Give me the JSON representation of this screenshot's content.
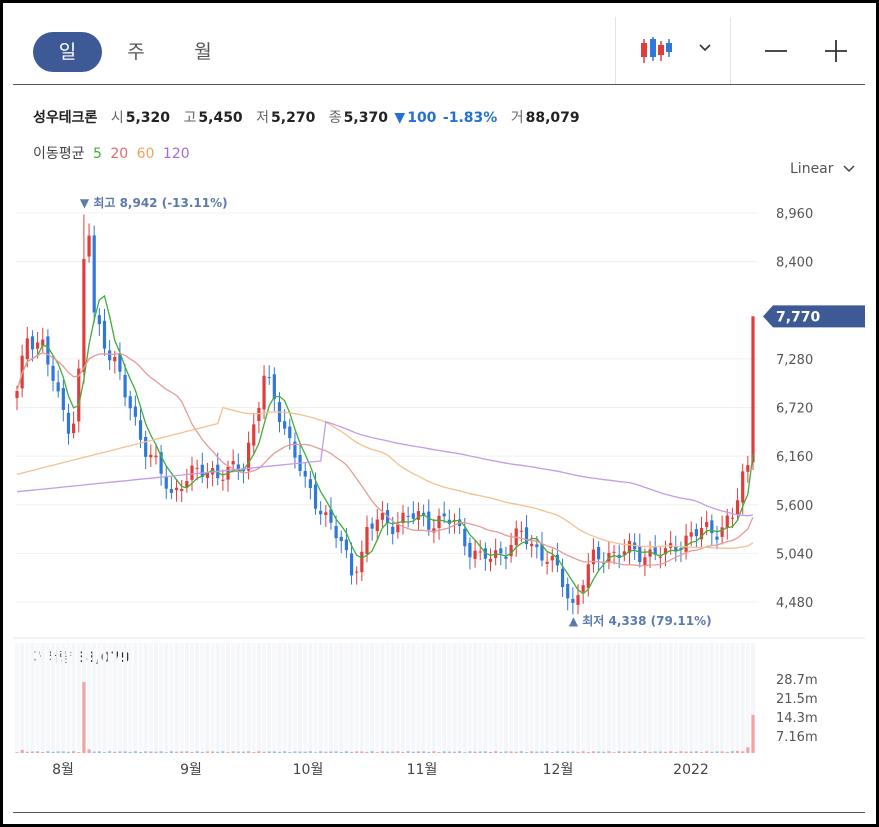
{
  "period_tabs": [
    {
      "label": "일",
      "active": true
    },
    {
      "label": "주",
      "active": false
    },
    {
      "label": "월",
      "active": false
    }
  ],
  "stock": {
    "name": "성우테크론",
    "open_label": "시",
    "open": "5,320",
    "high_label": "고",
    "high": "5,450",
    "low_label": "저",
    "low": "5,270",
    "close_label": "종",
    "close": "5,370",
    "change": "100",
    "change_pct": "-1.83%",
    "volume_label": "거",
    "volume": "88,079"
  },
  "moving_average": {
    "label": "이동평균",
    "periods": [
      {
        "label": "5",
        "color": "#3fae3a"
      },
      {
        "label": "20",
        "color": "#e26a6a"
      },
      {
        "label": "60",
        "color": "#f0a45a"
      },
      {
        "label": "120",
        "color": "#a36bd6"
      }
    ]
  },
  "scale_mode": "Linear",
  "volume_panel": {
    "label": "거래량",
    "value": "88,079"
  },
  "colors": {
    "up": "#e03c3c",
    "down": "#2f78d9",
    "accent": "#3d5a96",
    "annotation": "#5d7aab"
  },
  "chart_data": {
    "type": "candlestick",
    "price_axis": {
      "ticks": [
        4480,
        5040,
        5600,
        6160,
        6720,
        7280,
        8400,
        8960
      ],
      "labels": [
        "4,480",
        "5,040",
        "5,600",
        "6,160",
        "6,720",
        "7,280",
        "8,400",
        "8,960"
      ]
    },
    "current_price": {
      "value": 7770,
      "label": "7,770"
    },
    "high_annotation": {
      "value": 8942,
      "label": "최고 8,942 (-13.11%)"
    },
    "low_annotation": {
      "value": 4338,
      "label": "최저 4,338 (79.11%)"
    },
    "x_labels": [
      "8월",
      "9월",
      "10월",
      "11월",
      "12월",
      "2022"
    ],
    "volume_axis": {
      "labels": [
        "28.7m",
        "21.5m",
        "14.3m",
        "7.16m"
      ]
    },
    "series_names": [
      "5",
      "20",
      "60",
      "120"
    ]
  }
}
